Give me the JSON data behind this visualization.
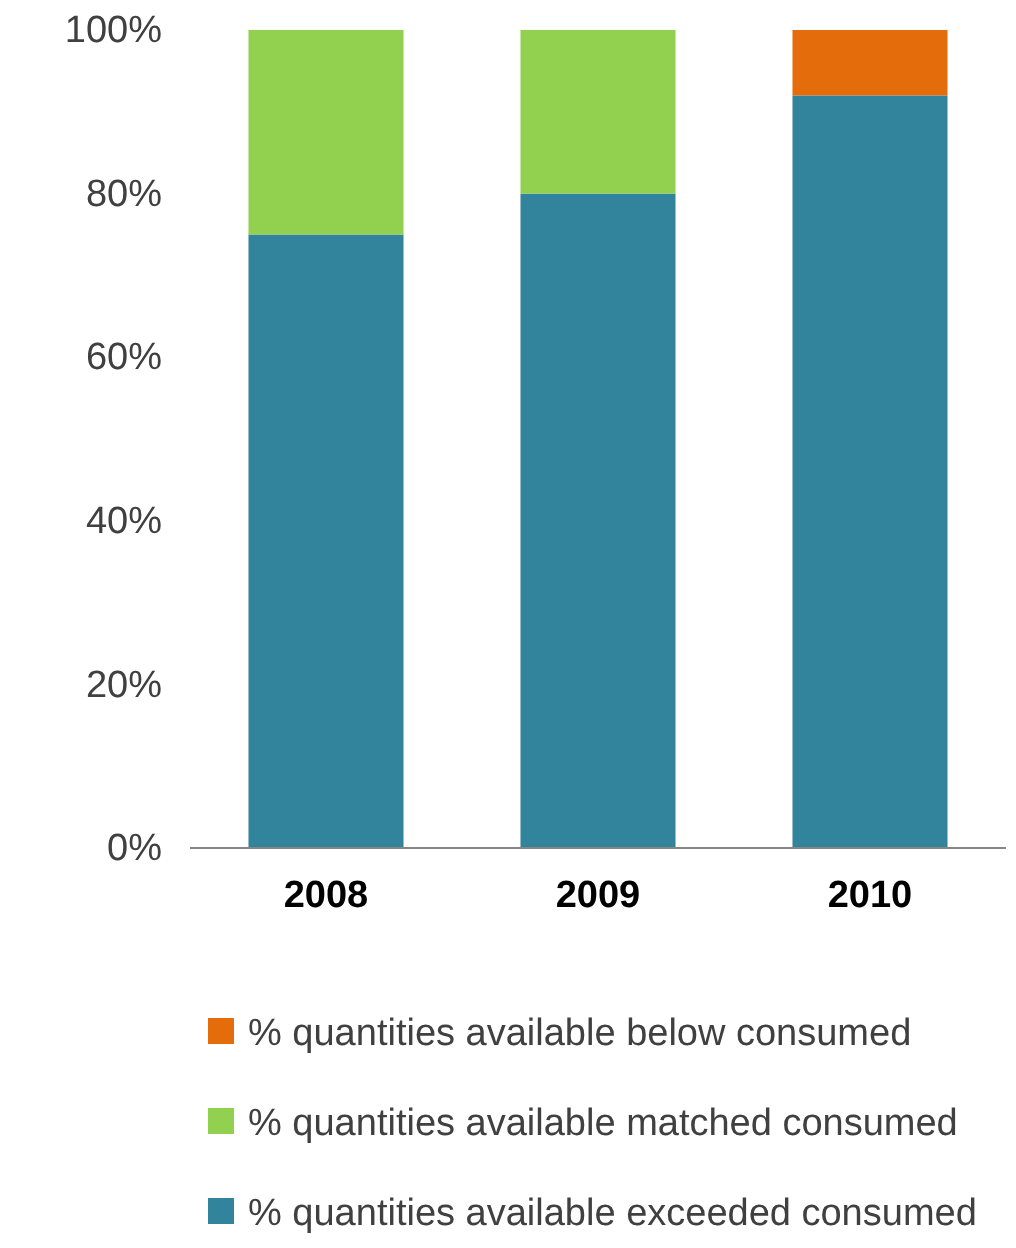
{
  "chart_data": {
    "type": "bar",
    "stacked": true,
    "categories": [
      "2008",
      "2009",
      "2010"
    ],
    "series": [
      {
        "name": "% quantities available exceeded consumed",
        "color": "#31849b",
        "values": [
          75,
          80,
          92
        ]
      },
      {
        "name": "% quantities available matched consumed",
        "color": "#92d050",
        "values": [
          25,
          20,
          0
        ]
      },
      {
        "name": "% quantities available below consumed",
        "color": "#e46c0a",
        "values": [
          0,
          0,
          8
        ]
      }
    ],
    "ylim": [
      0,
      100
    ],
    "yticks": [
      {
        "value": 0,
        "label": "0%"
      },
      {
        "value": 20,
        "label": "20%"
      },
      {
        "value": 40,
        "label": "40%"
      },
      {
        "value": 60,
        "label": "60%"
      },
      {
        "value": 80,
        "label": "80%"
      },
      {
        "value": 100,
        "label": "100%"
      }
    ],
    "grid": false,
    "legend": "bottom"
  }
}
